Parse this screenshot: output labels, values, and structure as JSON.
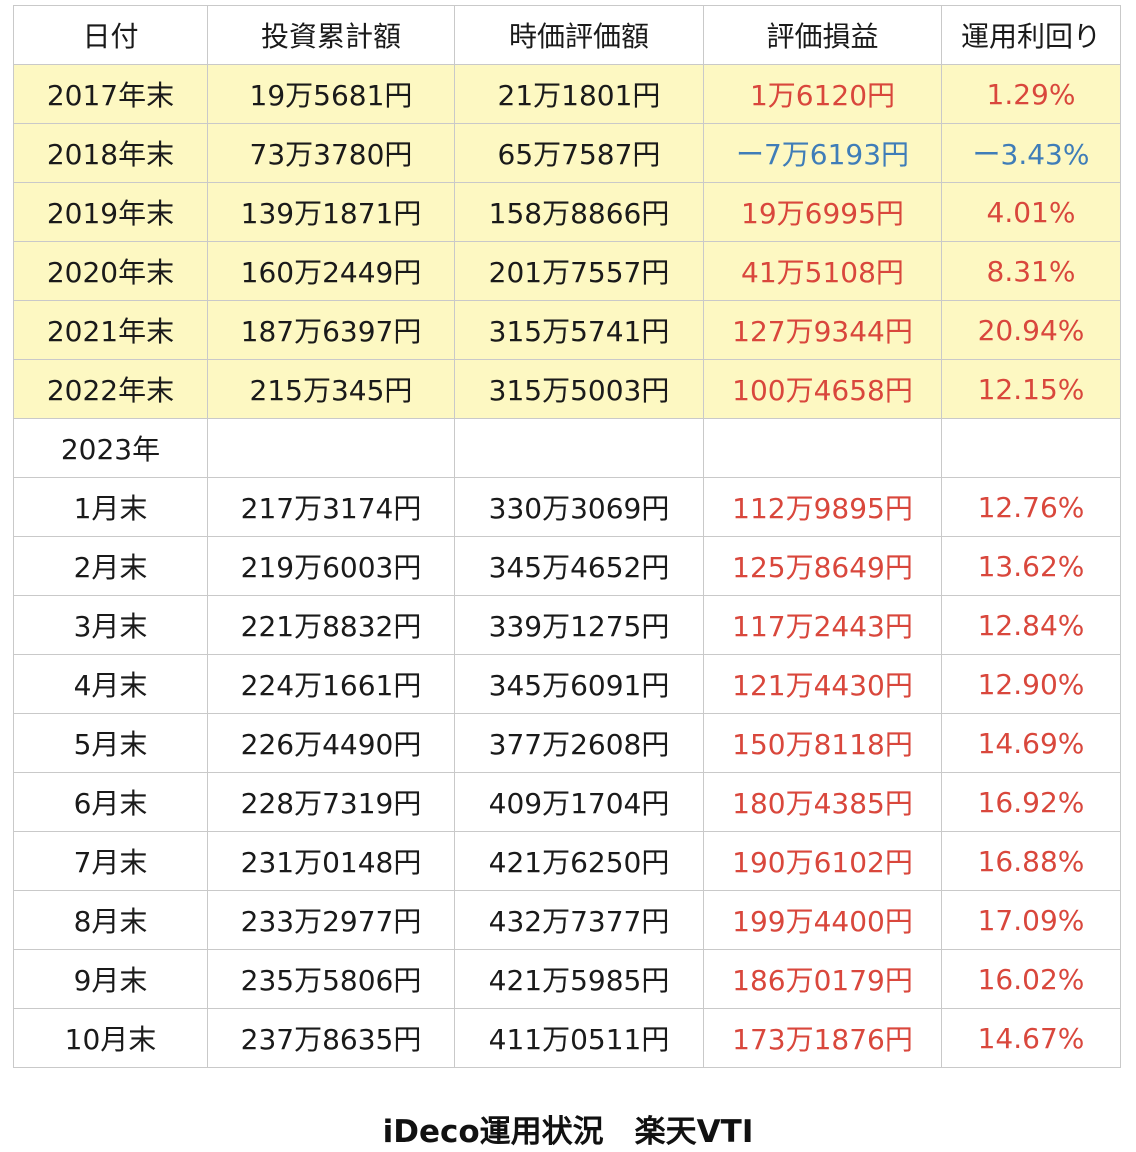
{
  "headers": [
    "日付",
    "投資累計額",
    "時価評価額",
    "評価損益",
    "運用利回り"
  ],
  "yearly": [
    {
      "date": "2017年末",
      "invested": "19万5681円",
      "market": "21万1801円",
      "gain": "1万6120円",
      "yield": "1.29%",
      "sign": "pos"
    },
    {
      "date": "2018年末",
      "invested": "73万3780円",
      "market": "65万7587円",
      "gain": "ー7万6193円",
      "yield": "ー3.43%",
      "sign": "neg"
    },
    {
      "date": "2019年末",
      "invested": "139万1871円",
      "market": "158万8866円",
      "gain": "19万6995円",
      "yield": "4.01%",
      "sign": "pos"
    },
    {
      "date": "2020年末",
      "invested": "160万2449円",
      "market": "201万7557円",
      "gain": "41万5108円",
      "yield": "8.31%",
      "sign": "pos"
    },
    {
      "date": "2021年末",
      "invested": "187万6397円",
      "market": "315万5741円",
      "gain": "127万9344円",
      "yield": "20.94%",
      "sign": "pos"
    },
    {
      "date": "2022年末",
      "invested": "215万345円",
      "market": "315万5003円",
      "gain": "100万4658円",
      "yield": "12.15%",
      "sign": "pos"
    }
  ],
  "section_year": "2023年",
  "monthly": [
    {
      "date": "1月末",
      "invested": "217万3174円",
      "market": "330万3069円",
      "gain": "112万9895円",
      "yield": "12.76%",
      "sign": "pos"
    },
    {
      "date": "2月末",
      "invested": "219万6003円",
      "market": "345万4652円",
      "gain": "125万8649円",
      "yield": "13.62%",
      "sign": "pos"
    },
    {
      "date": "3月末",
      "invested": "221万8832円",
      "market": "339万1275円",
      "gain": "117万2443円",
      "yield": "12.84%",
      "sign": "pos"
    },
    {
      "date": "4月末",
      "invested": "224万1661円",
      "market": "345万6091円",
      "gain": "121万4430円",
      "yield": "12.90%",
      "sign": "pos"
    },
    {
      "date": "5月末",
      "invested": "226万4490円",
      "market": "377万2608円",
      "gain": "150万8118円",
      "yield": "14.69%",
      "sign": "pos"
    },
    {
      "date": "6月末",
      "invested": "228万7319円",
      "market": "409万1704円",
      "gain": "180万4385円",
      "yield": "16.92%",
      "sign": "pos"
    },
    {
      "date": "7月末",
      "invested": "231万0148円",
      "market": "421万6250円",
      "gain": "190万6102円",
      "yield": "16.88%",
      "sign": "pos"
    },
    {
      "date": "8月末",
      "invested": "233万2977円",
      "market": "432万7377円",
      "gain": "199万4400円",
      "yield": "17.09%",
      "sign": "pos"
    },
    {
      "date": "9月末",
      "invested": "235万5806円",
      "market": "421万5985円",
      "gain": "186万0179円",
      "yield": "16.02%",
      "sign": "pos"
    },
    {
      "date": "10月末",
      "invested": "237万8635円",
      "market": "411万0511円",
      "gain": "173万1876円",
      "yield": "14.67%",
      "sign": "pos"
    }
  ],
  "caption": "iDeco運用状況　楽天VTI",
  "colors": {
    "yearly_row_background": "#fdf8c2",
    "positive": "#d9473c",
    "negative": "#3f7db8",
    "grid": "#c9c9c9"
  }
}
